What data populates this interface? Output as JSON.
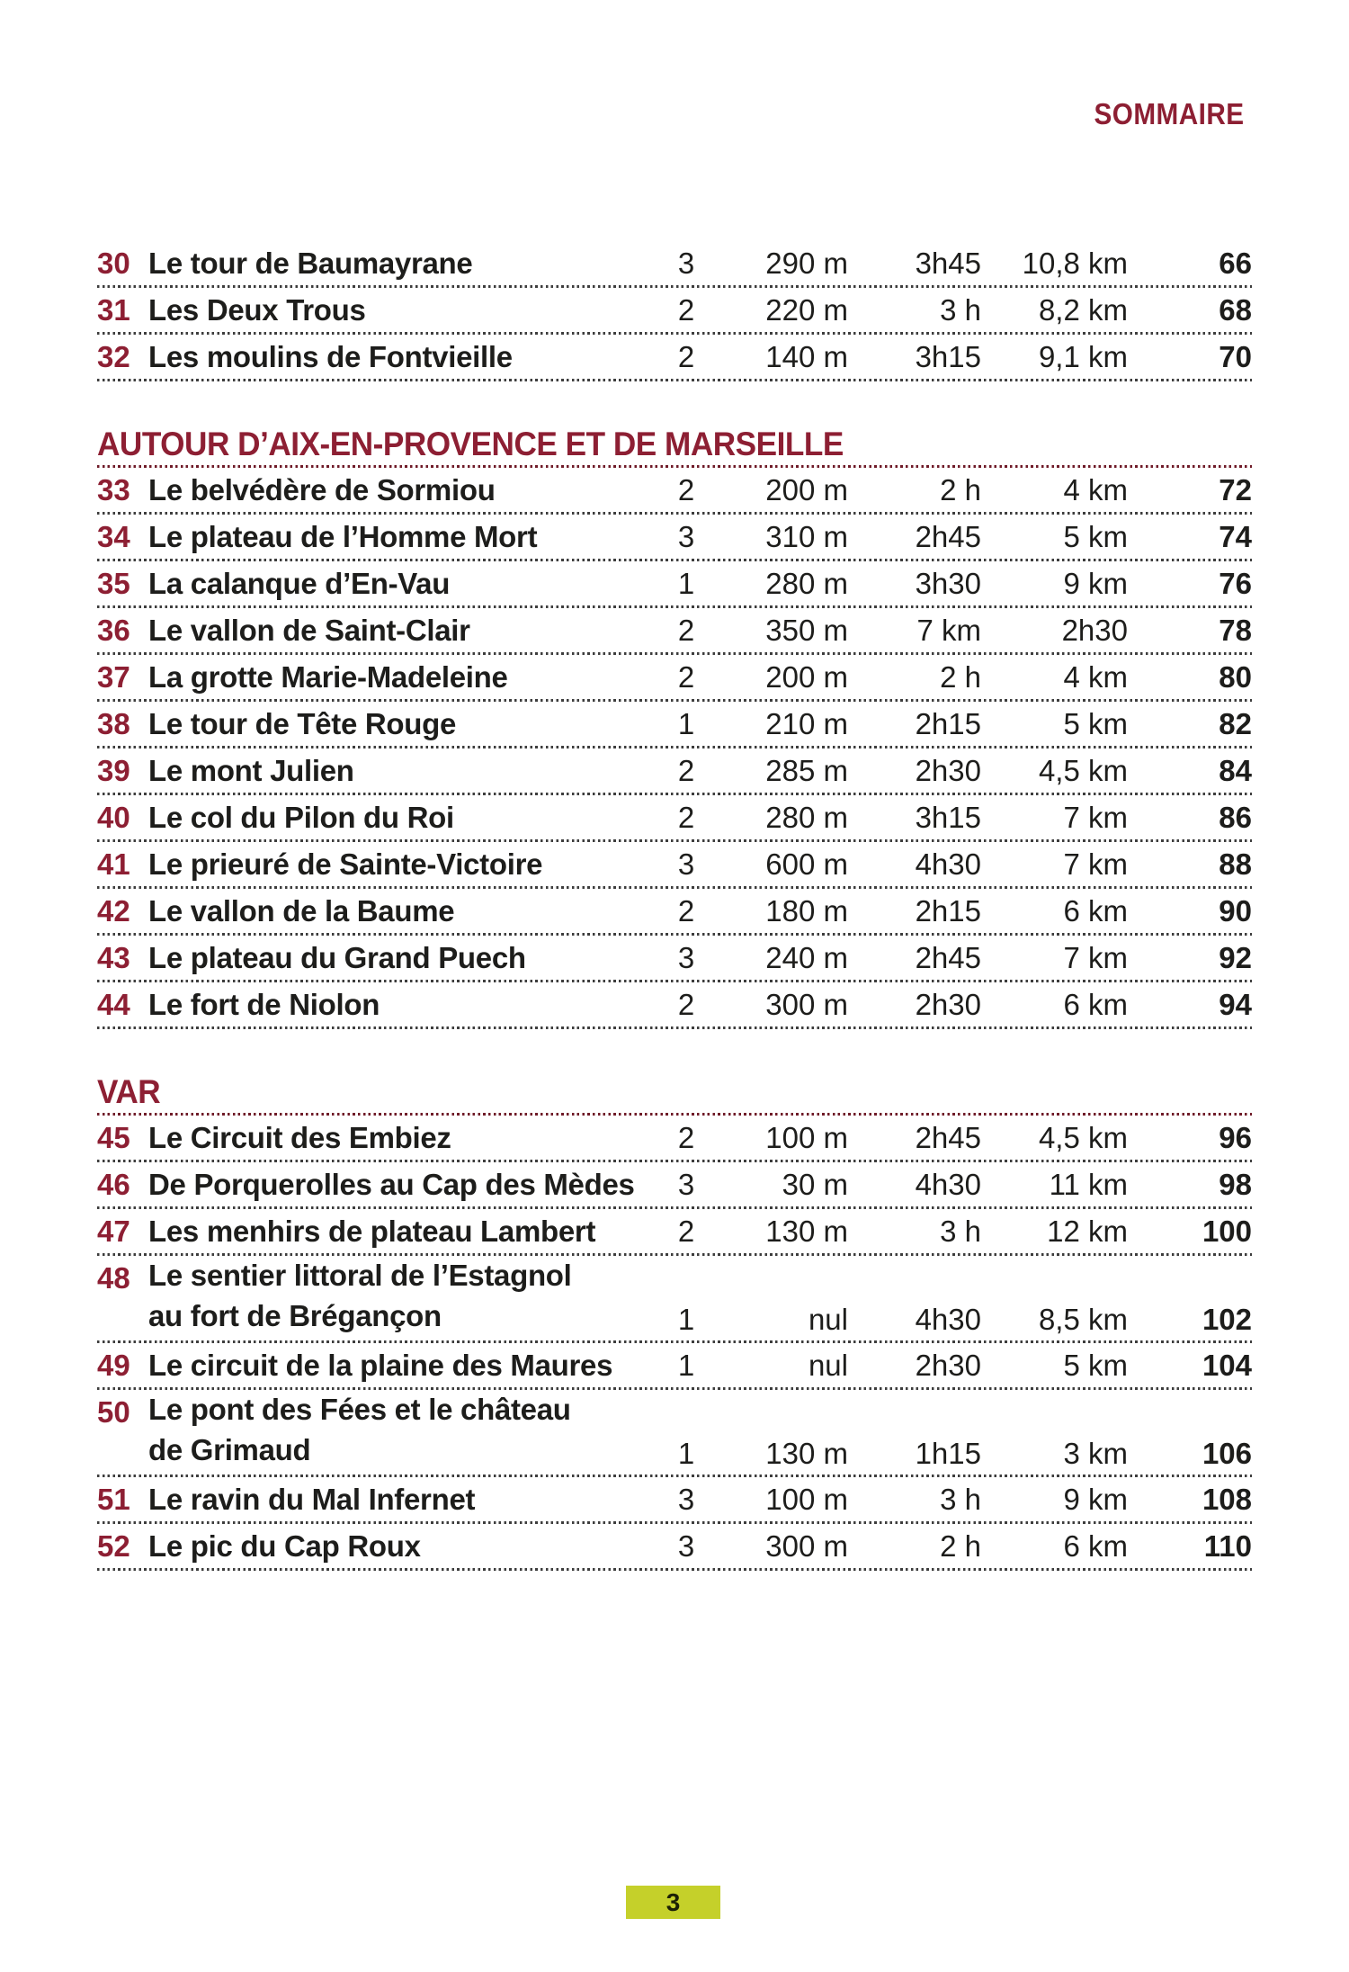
{
  "page": {
    "header_label": "SOMMAIRE",
    "page_number": "3"
  },
  "colors": {
    "maroon": "#8d1f33",
    "text": "#1d1d1b",
    "row_line": "#3d3d3d",
    "header_line": "#6f1b28",
    "badge_bg": "#c5d02a"
  },
  "toc": {
    "sections": [
      {
        "title": "",
        "rows": [
          {
            "num": "30",
            "title": "Le tour de Baumayrane",
            "difficulty": "3",
            "elevation": "290 m",
            "time": "3h45",
            "distance": "10,8 km",
            "page": "66"
          },
          {
            "num": "31",
            "title": "Les Deux Trous",
            "difficulty": "2",
            "elevation": "220 m",
            "time": "3 h",
            "distance": "8,2 km",
            "page": "68"
          },
          {
            "num": "32",
            "title": "Les moulins de Fontvieille",
            "difficulty": "2",
            "elevation": "140 m",
            "time": "3h15",
            "distance": "9,1 km",
            "page": "70"
          }
        ]
      },
      {
        "title": "AUTOUR D’AIX-EN-PROVENCE ET DE MARSEILLE",
        "rows": [
          {
            "num": "33",
            "title": "Le belvédère de Sormiou",
            "difficulty": "2",
            "elevation": "200 m",
            "time": "2 h",
            "distance": "4 km",
            "page": "72"
          },
          {
            "num": "34",
            "title": "Le plateau de l’Homme Mort",
            "difficulty": "3",
            "elevation": "310 m",
            "time": "2h45",
            "distance": "5 km",
            "page": "74"
          },
          {
            "num": "35",
            "title": "La calanque d’En-Vau",
            "difficulty": "1",
            "elevation": "280 m",
            "time": "3h30",
            "distance": "9 km",
            "page": "76"
          },
          {
            "num": "36",
            "title": "Le vallon de Saint-Clair",
            "difficulty": "2",
            "elevation": "350 m",
            "time": "7 km",
            "distance": "2h30",
            "page": "78"
          },
          {
            "num": "37",
            "title": "La grotte Marie-Madeleine",
            "difficulty": "2",
            "elevation": "200 m",
            "time": "2 h",
            "distance": "4 km",
            "page": "80"
          },
          {
            "num": "38",
            "title": "Le tour de Tête Rouge",
            "difficulty": "1",
            "elevation": "210 m",
            "time": "2h15",
            "distance": "5 km",
            "page": "82"
          },
          {
            "num": "39",
            "title": "Le mont Julien",
            "difficulty": "2",
            "elevation": "285 m",
            "time": "2h30",
            "distance": "4,5 km",
            "page": "84"
          },
          {
            "num": "40",
            "title": "Le col du Pilon du Roi",
            "difficulty": "2",
            "elevation": "280 m",
            "time": "3h15",
            "distance": "7 km",
            "page": "86"
          },
          {
            "num": "41",
            "title": "Le prieuré de Sainte-Victoire",
            "difficulty": "3",
            "elevation": "600 m",
            "time": "4h30",
            "distance": "7 km",
            "page": "88"
          },
          {
            "num": "42",
            "title": "Le vallon de la Baume",
            "difficulty": "2",
            "elevation": "180 m",
            "time": "2h15",
            "distance": "6 km",
            "page": "90"
          },
          {
            "num": "43",
            "title": "Le plateau du Grand Puech",
            "difficulty": "3",
            "elevation": "240 m",
            "time": "2h45",
            "distance": "7 km",
            "page": "92"
          },
          {
            "num": "44",
            "title": "Le fort de Niolon",
            "difficulty": "2",
            "elevation": "300 m",
            "time": "2h30",
            "distance": "6 km",
            "page": "94"
          }
        ]
      },
      {
        "title": "VAR",
        "rows": [
          {
            "num": "45",
            "title": "Le Circuit des Embiez",
            "difficulty": "2",
            "elevation": "100 m",
            "time": "2h45",
            "distance": "4,5 km",
            "page": "96"
          },
          {
            "num": "46",
            "title": "De Porquerolles au Cap des Mèdes",
            "difficulty": "3",
            "elevation": "30 m",
            "time": "4h30",
            "distance": "11 km",
            "page": "98"
          },
          {
            "num": "47",
            "title": "Les menhirs de plateau Lambert",
            "difficulty": "2",
            "elevation": "130 m",
            "time": "3 h",
            "distance": "12 km",
            "page": "100"
          },
          {
            "num": "48",
            "title": "Le sentier littoral de l’Estagnol\nau fort de Brégançon",
            "difficulty": "1",
            "elevation": "nul",
            "time": "4h30",
            "distance": "8,5 km",
            "page": "102"
          },
          {
            "num": "49",
            "title": "Le circuit de la plaine des Maures",
            "difficulty": "1",
            "elevation": "nul",
            "time": "2h30",
            "distance": "5 km",
            "page": "104"
          },
          {
            "num": "50",
            "title": "Le pont des Fées et le château\nde Grimaud",
            "difficulty": "1",
            "elevation": "130 m",
            "time": "1h15",
            "distance": "3 km",
            "page": "106"
          },
          {
            "num": "51",
            "title": "Le ravin du Mal Infernet",
            "difficulty": "3",
            "elevation": "100 m",
            "time": "3 h",
            "distance": "9 km",
            "page": "108"
          },
          {
            "num": "52",
            "title": "Le pic du Cap Roux",
            "difficulty": "3",
            "elevation": "300 m",
            "time": "2 h",
            "distance": "6 km",
            "page": "110"
          }
        ]
      }
    ]
  }
}
